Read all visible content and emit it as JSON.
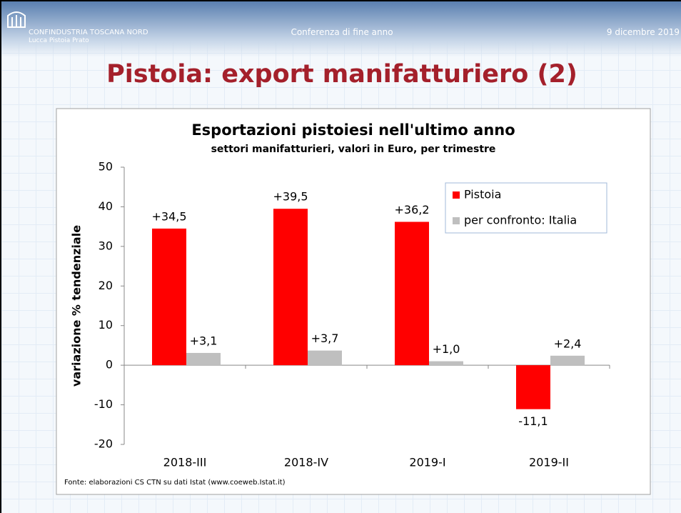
{
  "header": {
    "logo_name": "CONFINDUSTRIA TOSCANA NORD",
    "logo_sub": "Lucca Pistoia Prato",
    "event": "Conferenza di fine anno",
    "date": "9 dicembre 2019"
  },
  "slide_title": "Pistoia: export manifatturiero (2)",
  "chart_data": {
    "type": "bar",
    "title": "Esportazioni pistoiesi nell'ultimo anno",
    "subtitle": "settori manifatturieri, valori in Euro, per trimestre",
    "y_label": "variazione % tendenziale",
    "categories": [
      "2018-III",
      "2018-IV",
      "2019-I",
      "2019-II"
    ],
    "series": [
      {
        "name": "Pistoia",
        "color": "#ff0000",
        "values": [
          34.5,
          39.5,
          36.2,
          -11.1
        ],
        "value_labels": [
          "+34,5",
          "+39,5",
          "+36,2",
          "-11,1"
        ]
      },
      {
        "name": "per confronto: Italia",
        "color": "#bfbfbf",
        "values": [
          3.1,
          3.7,
          1.0,
          2.4
        ],
        "value_labels": [
          "+3,1",
          "+3,7",
          "+1,0",
          "+2,4"
        ]
      }
    ],
    "ylim": [
      -20,
      50
    ],
    "yticks": [
      -20,
      -10,
      0,
      10,
      20,
      30,
      40,
      50
    ],
    "grid": false,
    "legend": "upper right",
    "source": "Fonte: elaborazioni CS CTN su dati Istat (www.coeweb.Istat.it)"
  }
}
